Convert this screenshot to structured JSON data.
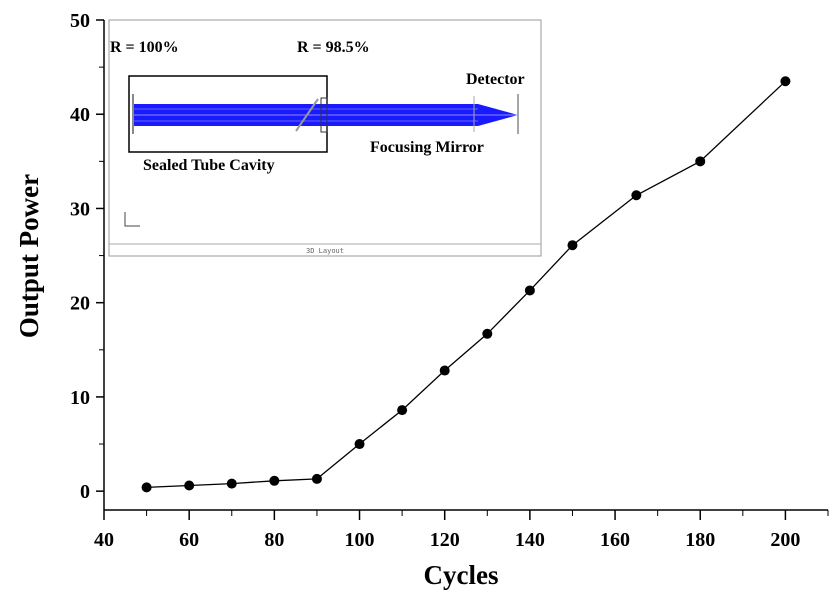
{
  "chart_data": {
    "type": "line",
    "title": "",
    "xlabel": "Cycles",
    "ylabel": "Output Power",
    "xlim": [
      40,
      210
    ],
    "ylim": [
      -2,
      50
    ],
    "xticks": [
      40,
      60,
      80,
      100,
      120,
      140,
      160,
      180,
      200
    ],
    "yticks": [
      0,
      10,
      20,
      30,
      40,
      50
    ],
    "grid": false,
    "series": [
      {
        "color": "#000000",
        "marker": "circle",
        "x": [
          50,
          60,
          70,
          80,
          90,
          100,
          110,
          120,
          130,
          140,
          150,
          165,
          180,
          200
        ],
        "y": [
          0.4,
          0.6,
          0.8,
          1.1,
          1.3,
          5.0,
          8.6,
          12.8,
          16.7,
          21.3,
          26.1,
          31.4,
          35.0,
          43.5
        ]
      }
    ]
  },
  "inset": {
    "label_r_left": "R = 100%",
    "label_r_right": "R = 98.5%",
    "label_detector": "Detector",
    "label_cavity": "Sealed Tube Cavity",
    "label_mirror": "Focusing Mirror",
    "label_footer": "3D Layout",
    "beam_color": "#1a1aff"
  }
}
